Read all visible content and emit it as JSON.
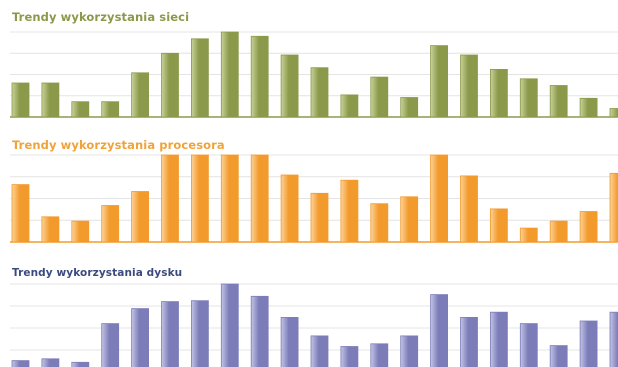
{
  "chart_data": [
    {
      "type": "bar",
      "title": "Trendy wykorzystania sieci",
      "color": "#8a9a4a",
      "color_light": "#c9d29a",
      "title_color": "#8a9a4a",
      "ylim": [
        0,
        100
      ],
      "values": [
        40,
        40,
        18,
        18,
        52,
        75,
        92,
        100,
        95,
        73,
        58,
        26,
        47,
        23,
        84,
        73,
        56,
        45,
        37,
        22,
        10
      ]
    },
    {
      "type": "bar",
      "title": "Trendy wykorzystania procesora",
      "color": "#f39a2c",
      "color_light": "#fcd49a",
      "title_color": "#f0a33a",
      "ylim": [
        0,
        100
      ],
      "values": [
        66,
        29,
        24,
        42,
        58,
        100,
        100,
        100,
        100,
        77,
        56,
        71,
        44,
        52,
        100,
        76,
        38,
        16,
        24,
        35,
        79
      ]
    },
    {
      "type": "bar",
      "title": "Trendy wykorzystania dysku",
      "color": "#7c7db8",
      "color_light": "#c4c5e6",
      "title_color": "#3b4a7e",
      "ylim": [
        0,
        100
      ],
      "values": [
        13,
        15,
        11,
        55,
        72,
        80,
        81,
        100,
        86,
        62,
        41,
        29,
        32,
        41,
        88,
        62,
        68,
        55,
        30,
        58,
        68
      ]
    }
  ]
}
